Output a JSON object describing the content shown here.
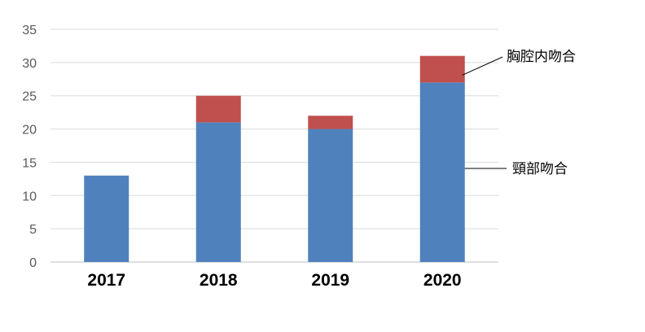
{
  "chart_data": {
    "type": "bar",
    "stacked": true,
    "categories": [
      "2017",
      "2018",
      "2019",
      "2020"
    ],
    "series": [
      {
        "name": "頸部吻合",
        "color": "#4f81bd",
        "values": [
          13,
          21,
          20,
          27
        ]
      },
      {
        "name": "胸腔内吻合",
        "color": "#c0504d",
        "values": [
          0,
          4,
          2,
          4
        ]
      }
    ],
    "ylim": [
      0,
      35
    ],
    "yticks": [
      0,
      5,
      10,
      15,
      20,
      25,
      30,
      35
    ],
    "grid": true,
    "legend": "callout labels at right"
  }
}
